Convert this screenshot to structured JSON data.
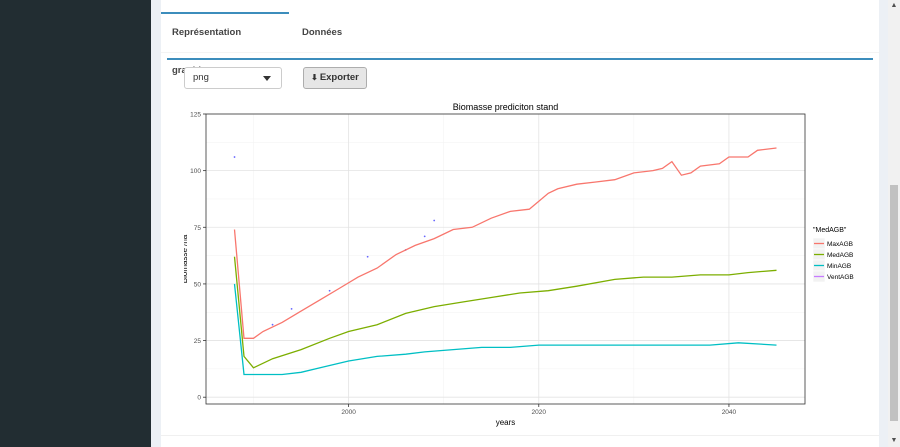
{
  "tabs": [
    {
      "label": "Représentation graphique",
      "active": true
    },
    {
      "label": "Données",
      "active": false
    }
  ],
  "format_select": {
    "value": "png"
  },
  "export_button": {
    "label": "Exporter",
    "icon": "download-icon"
  },
  "colors": {
    "sidebar": "#222d32",
    "accent": "#3c8dbc",
    "max": "#f8766d",
    "med": "#7cae00",
    "min": "#00bfc4",
    "vent": "#c77cff"
  },
  "chart_data": {
    "type": "line",
    "title": "Biomasse prediciton stand",
    "xlabel": "years",
    "ylabel": "Biomasse /ha",
    "xlim": [
      1985,
      2048
    ],
    "ylim": [
      -3,
      125
    ],
    "x_ticks": [
      2000,
      2020,
      2040
    ],
    "y_ticks": [
      0,
      25,
      50,
      75,
      100,
      125
    ],
    "grid": true,
    "legend": {
      "title": "\"MedAGB\"",
      "position": "right"
    },
    "series": [
      {
        "name": "MaxAGB",
        "color": "#f8766d",
        "x": [
          1988,
          1989,
          1990,
          1991,
          1993,
          1995,
          1997,
          1999,
          2001,
          2003,
          2005,
          2007,
          2009,
          2011,
          2013,
          2015,
          2017,
          2019,
          2021,
          2022,
          2024,
          2026,
          2028,
          2030,
          2032,
          2033,
          2034,
          2035,
          2036,
          2037,
          2039,
          2040,
          2042,
          2043,
          2045
        ],
        "y": [
          74,
          26,
          26,
          29,
          33,
          38,
          43,
          48,
          53,
          57,
          63,
          67,
          70,
          74,
          75,
          79,
          82,
          83,
          90,
          92,
          94,
          95,
          96,
          99,
          100,
          101,
          104,
          98,
          99,
          102,
          103,
          106,
          106,
          109,
          110
        ]
      },
      {
        "name": "MedAGB",
        "color": "#7cae00",
        "x": [
          1988,
          1989,
          1990,
          1992,
          1995,
          1998,
          2000,
          2003,
          2006,
          2009,
          2012,
          2015,
          2018,
          2021,
          2024,
          2028,
          2031,
          2034,
          2037,
          2040,
          2042,
          2045
        ],
        "y": [
          62,
          18,
          13,
          17,
          21,
          26,
          29,
          32,
          37,
          40,
          42,
          44,
          46,
          47,
          49,
          52,
          53,
          53,
          54,
          54,
          55,
          56
        ]
      },
      {
        "name": "MinAGB",
        "color": "#00bfc4",
        "x": [
          1988,
          1989,
          1990,
          1993,
          1995,
          1997,
          2000,
          2003,
          2006,
          2008,
          2011,
          2014,
          2017,
          2020,
          2023,
          2026,
          2029,
          2032,
          2035,
          2038,
          2041,
          2045
        ],
        "y": [
          50,
          10,
          10,
          10,
          11,
          13,
          16,
          18,
          19,
          20,
          21,
          22,
          22,
          23,
          23,
          23,
          23,
          23,
          23,
          23,
          24,
          23
        ]
      },
      {
        "name": "VentAGB",
        "color": "#c77cff",
        "x": [],
        "y": []
      }
    ],
    "observations": {
      "x": [
        1988,
        1992,
        1994,
        1998,
        2002,
        2006,
        2008,
        2009
      ],
      "y": [
        106,
        32,
        39,
        47,
        62,
        65,
        71,
        78
      ]
    }
  }
}
